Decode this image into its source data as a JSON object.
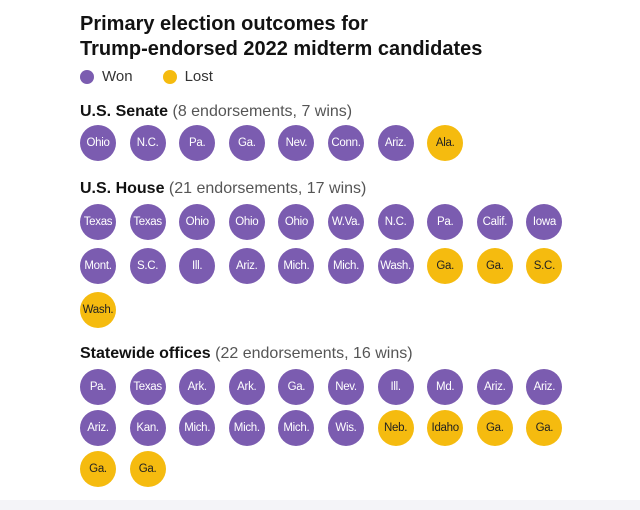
{
  "title_line1": "Primary election outcomes for",
  "title_line2": "Trump-endorsed 2022 midterm candidates",
  "colors": {
    "won": "#7b5cb0",
    "lost": "#f5bb0f"
  },
  "chart_data": {
    "type": "dot-grid",
    "legend": [
      {
        "label": "Won",
        "color": "#7b5cb0"
      },
      {
        "label": "Lost",
        "color": "#f5bb0f"
      }
    ],
    "sections": [
      {
        "name": "U.S. Senate",
        "detail": "(8 endorsements, 7 wins)",
        "won": [
          "Ohio",
          "N.C.",
          "Pa.",
          "Ga.",
          "Nev.",
          "Conn.",
          "Ariz."
        ],
        "lost": [
          "Ala."
        ]
      },
      {
        "name": "U.S. House",
        "detail": "(21 endorsements, 17 wins)",
        "won": [
          "Texas",
          "Texas",
          "Ohio",
          "Ohio",
          "Ohio",
          "W.Va.",
          "N.C.",
          "Pa.",
          "Calif.",
          "Iowa",
          "Mont.",
          "S.C.",
          "Ill.",
          "Ariz.",
          "Mich.",
          "Mich.",
          "Wash."
        ],
        "lost": [
          "Ga.",
          "Ga.",
          "S.C.",
          "Wash."
        ]
      },
      {
        "name": "Statewide offices",
        "detail": "(22 endorsements, 16 wins)",
        "won": [
          "Pa.",
          "Texas",
          "Ark.",
          "Ark.",
          "Ga.",
          "Nev.",
          "Ill.",
          "Md.",
          "Ariz.",
          "Ariz.",
          "Ariz.",
          "Kan.",
          "Mich.",
          "Mich.",
          "Mich.",
          "Wis."
        ],
        "lost": [
          "Neb.",
          "Idaho",
          "Ga.",
          "Ga.",
          "Ga.",
          "Ga."
        ]
      }
    ]
  }
}
